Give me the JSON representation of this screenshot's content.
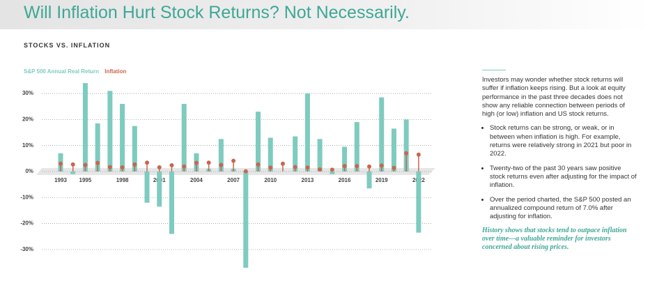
{
  "header": {
    "title": "Will Inflation Hurt Stock Returns? Not Necessarily."
  },
  "chart_data": {
    "type": "bar-lollipop",
    "subtitle": "STOCKS VS. INFLATION",
    "categories": [
      "1993",
      null,
      "1995",
      null,
      null,
      "1998",
      null,
      null,
      "2001",
      null,
      null,
      "2004",
      null,
      null,
      "2007",
      null,
      null,
      "2010",
      null,
      null,
      "2013",
      null,
      null,
      "2016",
      null,
      null,
      "2019",
      null,
      null,
      "2022"
    ],
    "series": [
      {
        "name": "S&P 500 Annual Real Return",
        "color": "#7ecbbf",
        "mark": "bar",
        "values": [
          7,
          -1,
          34,
          18.5,
          31,
          26,
          17.5,
          -12,
          -13.5,
          -24,
          26,
          7,
          1,
          12.5,
          1,
          -37,
          23,
          13,
          0,
          13.5,
          30,
          12.5,
          -1,
          9.5,
          19,
          -6.5,
          28.5,
          16.5,
          20,
          -23.5
        ]
      },
      {
        "name": "Inflation",
        "color": "#c9664f",
        "mark": "lollipop",
        "values": [
          3,
          2.7,
          2.5,
          3.3,
          1.7,
          1.6,
          2.7,
          3.4,
          1.6,
          2.4,
          1.9,
          3.3,
          3.4,
          2.5,
          4.1,
          0.1,
          2.7,
          1.5,
          3,
          1.7,
          1.5,
          0.8,
          0.7,
          2.1,
          2.1,
          1.9,
          2.3,
          1.4,
          7,
          6.5
        ]
      }
    ],
    "ylim": [
      -38,
      36
    ],
    "yticks": [
      {
        "value": 30,
        "label": "30%"
      },
      {
        "value": 20,
        "label": "20%"
      },
      {
        "value": 10,
        "label": "10%"
      },
      {
        "value": 0,
        "label": "0%"
      },
      {
        "value": -10,
        "label": "-10%"
      },
      {
        "value": -20,
        "label": "-20%"
      },
      {
        "value": -30,
        "label": "-30%"
      }
    ],
    "grid": true
  },
  "sidebar": {
    "intro": "Investors may wonder whether stock returns will suffer if inflation keeps rising. But a look at equity performance in the past three decades does not show any reliable connection between periods of high (or low) inflation and US stock returns.",
    "bullets": [
      "Stock returns can be strong, or weak, or in between when inflation is high. For example, returns were relatively strong in 2021 but poor in 2022.",
      "Twenty-two of the past 30 years saw positive stock returns even after adjusting for the impact of inflation.",
      "Over the period charted, the S&P 500 posted an annualized compound return of 7.0% after adjusting for inflation."
    ],
    "closing": "History shows that stocks tend to outpace inflation over time—a valuable reminder for investors concerned about rising prices."
  }
}
